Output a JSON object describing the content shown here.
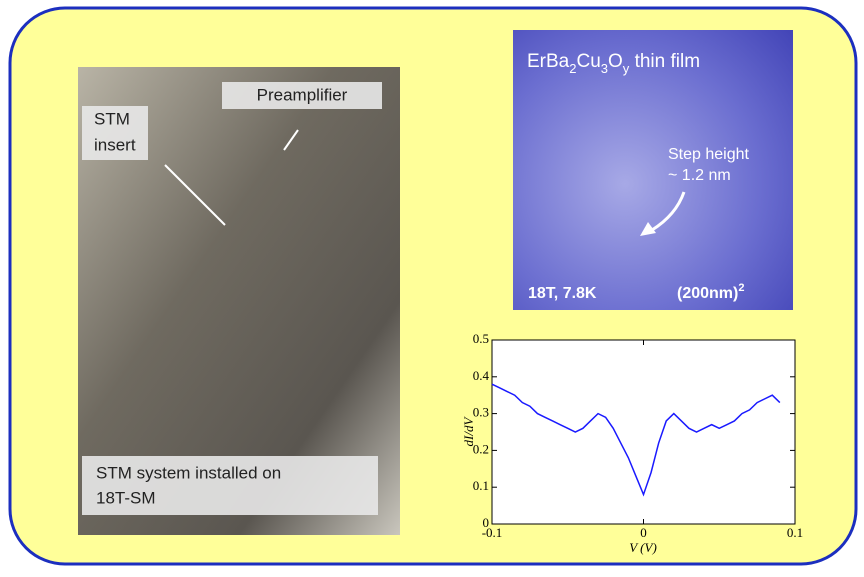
{
  "photo": {
    "labels": {
      "preamplifier": "Preamplifier",
      "insert": [
        "STM",
        "insert"
      ],
      "caption": [
        "STM system installed on",
        "18T-SM"
      ]
    }
  },
  "stm_image": {
    "title": [
      {
        "text": "ErBa"
      },
      {
        "text": "2",
        "sub": true
      },
      {
        "text": "Cu"
      },
      {
        "text": "3",
        "sub": true
      },
      {
        "text": "O"
      },
      {
        "text": "y",
        "sub": true
      },
      {
        "text": " thin film"
      }
    ],
    "step": [
      "Step height",
      "~ 1.2 nm"
    ],
    "conditions": "18T, 7.8K",
    "scale": [
      {
        "text": "(200nm)"
      },
      {
        "text": "2",
        "sup": true
      }
    ]
  },
  "chart_data": {
    "type": "line",
    "ylabel": "dI/dV",
    "xlabel": "V (V)",
    "x": [
      -0.1,
      -0.095,
      -0.09,
      -0.085,
      -0.08,
      -0.075,
      -0.07,
      -0.065,
      -0.06,
      -0.055,
      -0.05,
      -0.045,
      -0.04,
      -0.035,
      -0.03,
      -0.025,
      -0.02,
      -0.015,
      -0.01,
      -0.005,
      0,
      0.005,
      0.01,
      0.015,
      0.02,
      0.025,
      0.03,
      0.035,
      0.04,
      0.045,
      0.05,
      0.055,
      0.06,
      0.065,
      0.07,
      0.075,
      0.08,
      0.085,
      0.09
    ],
    "series": [
      {
        "name": "dI/dV",
        "color": "#1a1aff",
        "values": [
          0.38,
          0.37,
          0.36,
          0.35,
          0.33,
          0.32,
          0.3,
          0.29,
          0.28,
          0.27,
          0.26,
          0.25,
          0.26,
          0.28,
          0.3,
          0.29,
          0.26,
          0.22,
          0.18,
          0.13,
          0.08,
          0.14,
          0.22,
          0.28,
          0.3,
          0.28,
          0.26,
          0.25,
          0.26,
          0.27,
          0.26,
          0.27,
          0.28,
          0.3,
          0.31,
          0.33,
          0.34,
          0.35,
          0.33
        ]
      }
    ],
    "xlim": [
      -0.1,
      0.1
    ],
    "ylim": [
      0,
      0.5
    ],
    "xticks": [
      -0.1,
      0,
      0.1
    ],
    "yticks": [
      0,
      0.1,
      0.2,
      0.3,
      0.4,
      0.5
    ]
  }
}
